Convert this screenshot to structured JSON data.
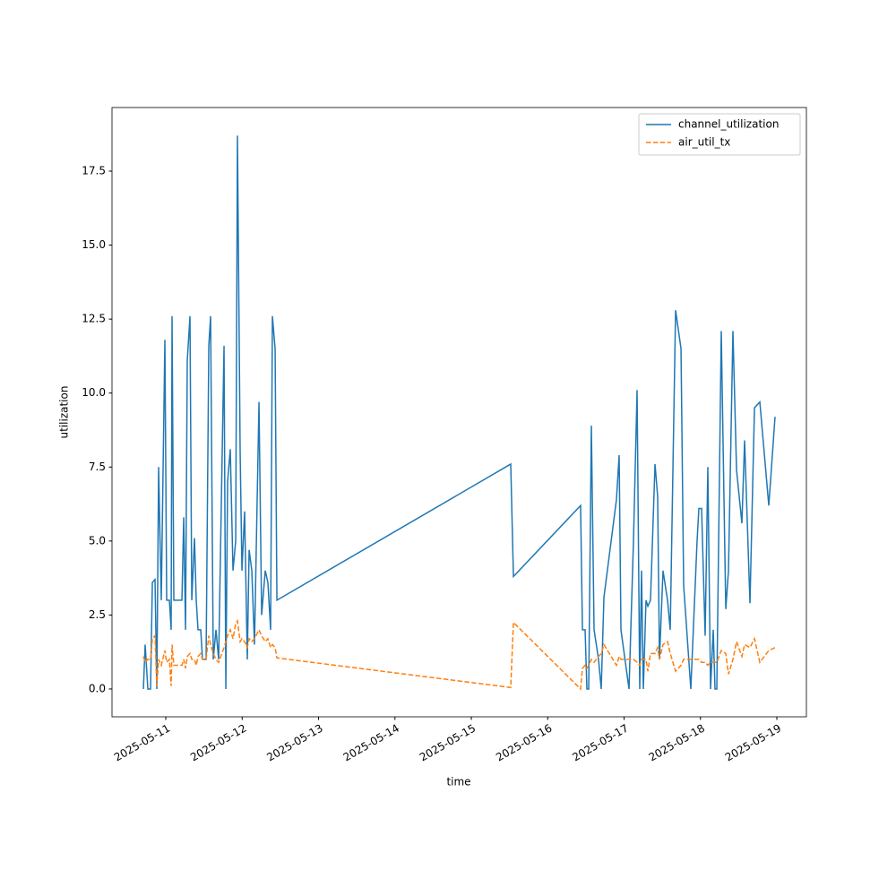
{
  "chart_data": {
    "type": "line",
    "xlabel": "time",
    "ylabel": "utilization",
    "x": [
      "2025-05-10T16:58",
      "2025-05-10T17:31",
      "2025-05-10T18:22",
      "2025-05-10T19:13",
      "2025-05-10T19:47",
      "2025-05-10T20:37",
      "2025-05-10T21:11",
      "2025-05-10T21:45",
      "2025-05-10T22:35",
      "2025-05-10T23:43",
      "2025-05-11T00:17",
      "2025-05-11T01:08",
      "2025-05-11T01:41",
      "2025-05-11T01:58",
      "2025-05-11T02:32",
      "2025-05-11T05:04",
      "2025-05-11T05:38",
      "2025-05-11T06:12",
      "2025-05-11T06:45",
      "2025-05-11T07:36",
      "2025-05-11T08:10",
      "2025-05-11T09:01",
      "2025-05-11T09:34",
      "2025-05-11T10:08",
      "2025-05-11T10:59",
      "2025-05-11T11:32",
      "2025-05-11T12:40",
      "2025-05-11T13:31",
      "2025-05-11T14:05",
      "2025-05-11T14:55",
      "2025-05-11T15:46",
      "2025-05-11T16:37",
      "2025-05-11T18:18",
      "2025-05-11T18:52",
      "2025-05-11T19:25",
      "2025-05-11T20:16",
      "2025-05-11T21:07",
      "2025-05-11T21:58",
      "2025-05-11T22:31",
      "2025-05-11T23:22",
      "2025-05-11T23:56",
      "2025-05-12T00:46",
      "2025-05-12T01:37",
      "2025-05-12T02:11",
      "2025-05-12T03:02",
      "2025-05-12T03:52",
      "2025-05-12T05:17",
      "2025-05-12T06:07",
      "2025-05-12T07:15",
      "2025-05-12T08:05",
      "2025-05-12T08:56",
      "2025-05-12T09:30",
      "2025-05-12T10:21",
      "2025-05-12T10:55",
      "2025-05-15T12:23",
      "2025-05-15T13:14",
      "2025-05-16T10:20",
      "2025-05-16T10:55",
      "2025-05-16T11:45",
      "2025-05-16T12:19",
      "2025-05-16T12:53",
      "2025-05-16T13:43",
      "2025-05-16T14:34",
      "2025-05-16T15:58",
      "2025-05-16T16:49",
      "2025-05-16T17:40",
      "2025-05-16T21:36",
      "2025-05-16T22:27",
      "2025-05-16T23:01",
      "2025-05-17T01:33",
      "2025-05-17T02:57",
      "2025-05-17T04:05",
      "2025-05-17T04:55",
      "2025-05-17T05:29",
      "2025-05-17T06:03",
      "2025-05-17T06:53",
      "2025-05-17T07:28",
      "2025-05-17T08:18",
      "2025-05-17T09:43",
      "2025-05-17T10:33",
      "2025-05-17T11:07",
      "2025-05-17T12:14",
      "2025-05-17T13:39",
      "2025-05-17T14:30",
      "2025-05-17T16:11",
      "2025-05-17T17:53",
      "2025-05-17T18:43",
      "2025-05-17T20:58",
      "2025-05-17T22:56",
      "2025-05-17T23:30",
      "2025-05-18T00:21",
      "2025-05-18T01:28",
      "2025-05-18T02:19",
      "2025-05-18T03:10",
      "2025-05-18T04:01",
      "2025-05-18T04:34",
      "2025-05-18T05:08",
      "2025-05-18T06:32",
      "2025-05-18T07:57",
      "2025-05-18T08:48",
      "2025-05-18T10:12",
      "2025-05-18T11:20",
      "2025-05-18T13:01",
      "2025-05-18T13:52",
      "2025-05-18T15:33",
      "2025-05-18T16:58",
      "2025-05-18T18:39",
      "2025-05-18T21:28",
      "2025-05-18T23:26"
    ],
    "series": [
      {
        "name": "channel_utilization",
        "color": "#1f77b4",
        "linestyle": "solid",
        "values": [
          0,
          1.5,
          0,
          0,
          3.6,
          3.7,
          0,
          7.5,
          3,
          11.8,
          3,
          3,
          2,
          12.6,
          3,
          3,
          5.8,
          2,
          11.1,
          12.6,
          3,
          5.1,
          3,
          2,
          2,
          1,
          1,
          11.6,
          12.6,
          1,
          2,
          1,
          11.6,
          0,
          7,
          8.1,
          4,
          5,
          18.7,
          8,
          4,
          6,
          1,
          4.7,
          4,
          1.5,
          9.7,
          2.5,
          4,
          3.6,
          2,
          12.6,
          11.5,
          3,
          7.6,
          3.8,
          6.2,
          2,
          2,
          0,
          0,
          8.9,
          2,
          1,
          0,
          3.1,
          6.4,
          7.9,
          2,
          0,
          5,
          10.1,
          0,
          4,
          0,
          3,
          2.8,
          3,
          7.6,
          6.5,
          1,
          4,
          3,
          2,
          12.8,
          11.5,
          3.5,
          0,
          5,
          6.1,
          6.1,
          1.8,
          7.5,
          0,
          2,
          0,
          0,
          12.1,
          2.7,
          4,
          12.1,
          7.4,
          5.6,
          8.4,
          2.9,
          9.5,
          9.7,
          6.2,
          9.2
        ]
      },
      {
        "name": "air_util_tx",
        "color": "#ff7f0e",
        "linestyle": "dashed",
        "values": [
          1.1,
          0.9,
          1.0,
          1.0,
          1.7,
          1.8,
          0.1,
          1.0,
          0.8,
          1.3,
          0.9,
          1.0,
          0.1,
          1.5,
          0.8,
          0.8,
          1.0,
          0.7,
          1.1,
          1.2,
          1.0,
          1.0,
          0.8,
          1.1,
          1.2,
          1.0,
          1.0,
          1.8,
          1.5,
          1.2,
          1.0,
          0.9,
          1.4,
          1.6,
          1.8,
          2.0,
          1.7,
          2.2,
          2.3,
          1.6,
          1.7,
          1.6,
          1.4,
          1.7,
          1.6,
          1.7,
          2.0,
          1.8,
          1.6,
          1.7,
          1.4,
          1.5,
          1.4,
          1.05,
          0.05,
          2.25,
          0,
          0.7,
          0.8,
          0.7,
          0.8,
          1.0,
          0.9,
          1.1,
          1.2,
          1.5,
          0.8,
          1.1,
          1.0,
          1.0,
          1.0,
          0.9,
          0.8,
          1.0,
          1.0,
          1.0,
          0.6,
          1.2,
          1.2,
          1.4,
          1.0,
          1.5,
          1.6,
          1.2,
          0.6,
          0.8,
          1.0,
          1.0,
          1.0,
          1.0,
          0.9,
          0.9,
          0.8,
          0.9,
          0.9,
          0.9,
          0.9,
          1.3,
          1.2,
          0.5,
          1.0,
          1.6,
          1.1,
          1.5,
          1.4,
          1.7,
          0.9,
          1.3,
          1.4
        ]
      }
    ],
    "xlim": [
      "2025-05-10T07:06",
      "2025-05-19T09:17"
    ],
    "xticks": [
      "2025-05-11",
      "2025-05-12",
      "2025-05-13",
      "2025-05-14",
      "2025-05-15",
      "2025-05-16",
      "2025-05-17",
      "2025-05-18",
      "2025-05-19"
    ],
    "ylim": [
      -0.94,
      19.65
    ],
    "yticks": [
      {
        "value": 0,
        "label": "0.0"
      },
      2.5,
      {
        "value": 5,
        "label": "5.0"
      },
      7.5,
      {
        "value": 10,
        "label": "10.0"
      },
      12.5,
      {
        "value": 15,
        "label": "15.0"
      },
      17.5
    ],
    "legend": "upper right",
    "grid": false
  }
}
